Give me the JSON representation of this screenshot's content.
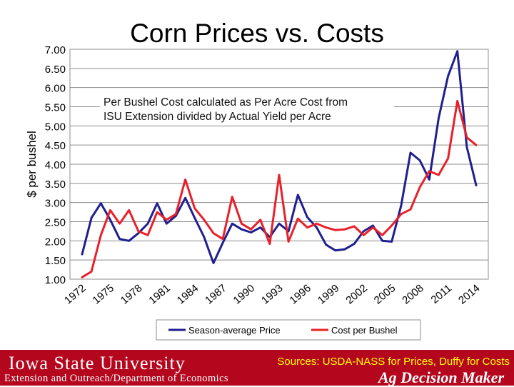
{
  "title": "Corn Prices vs. Costs",
  "annotation": {
    "line1": "Per Bushel Cost calculated as Per Acre Cost from",
    "line2": "ISU Extension divided by Actual Yield per Acre"
  },
  "colors": {
    "price": "#1f1f8f",
    "cost": "#e8202a",
    "footer": "#b4071e",
    "sources": "#ffff00"
  },
  "footer": {
    "university": "Iowa State University",
    "subtitle": "Extension and Outreach/Department of Economics",
    "sources": "Sources: USDA-NASS for Prices, Duffy for Costs",
    "brand": "Ag Decision Maker"
  },
  "chart_data": {
    "type": "line",
    "title": "Corn Prices vs. Costs",
    "xlabel": "",
    "ylabel": "$ per bushel",
    "ylim": [
      1.0,
      7.0
    ],
    "yticks": [
      "1.00",
      "1.50",
      "2.00",
      "2.50",
      "3.00",
      "3.50",
      "4.00",
      "4.50",
      "5.00",
      "5.50",
      "6.00",
      "6.50",
      "7.00"
    ],
    "xtick_labels": [
      "1972",
      "1975",
      "1978",
      "1981",
      "1984",
      "1987",
      "1990",
      "1993",
      "1996",
      "1999",
      "2002",
      "2005",
      "2008",
      "2011",
      "2014"
    ],
    "grid": true,
    "legend_position": "bottom",
    "x": [
      1972,
      1973,
      1974,
      1975,
      1976,
      1977,
      1978,
      1979,
      1980,
      1981,
      1982,
      1983,
      1984,
      1985,
      1986,
      1987,
      1988,
      1989,
      1990,
      1991,
      1992,
      1993,
      1994,
      1995,
      1996,
      1997,
      1998,
      1999,
      2000,
      2001,
      2002,
      2003,
      2004,
      2005,
      2006,
      2007,
      2008,
      2009,
      2010,
      2011,
      2012,
      2013,
      2014
    ],
    "series": [
      {
        "name": "Season-average Price",
        "values": [
          1.65,
          2.6,
          2.98,
          2.55,
          2.05,
          2.0,
          2.2,
          2.45,
          2.98,
          2.45,
          2.65,
          3.12,
          2.6,
          2.1,
          1.42,
          1.95,
          2.45,
          2.3,
          2.22,
          2.35,
          2.1,
          2.45,
          2.25,
          3.2,
          2.62,
          2.35,
          1.9,
          1.75,
          1.78,
          1.92,
          2.25,
          2.4,
          2.0,
          1.98,
          2.92,
          4.3,
          4.1,
          3.6,
          5.2,
          6.3,
          6.95,
          4.45,
          3.45
        ]
      },
      {
        "name": "Cost per Bushel",
        "values": [
          1.05,
          1.2,
          2.15,
          2.8,
          2.45,
          2.8,
          2.25,
          2.15,
          2.75,
          2.55,
          2.7,
          3.6,
          2.85,
          2.55,
          2.2,
          2.05,
          3.15,
          2.45,
          2.3,
          2.55,
          1.92,
          3.72,
          1.98,
          2.58,
          2.35,
          2.45,
          2.35,
          2.28,
          2.3,
          2.38,
          2.15,
          2.35,
          2.15,
          2.4,
          2.7,
          2.82,
          3.4,
          3.82,
          3.72,
          4.15,
          5.65,
          4.7,
          4.5
        ]
      }
    ]
  }
}
